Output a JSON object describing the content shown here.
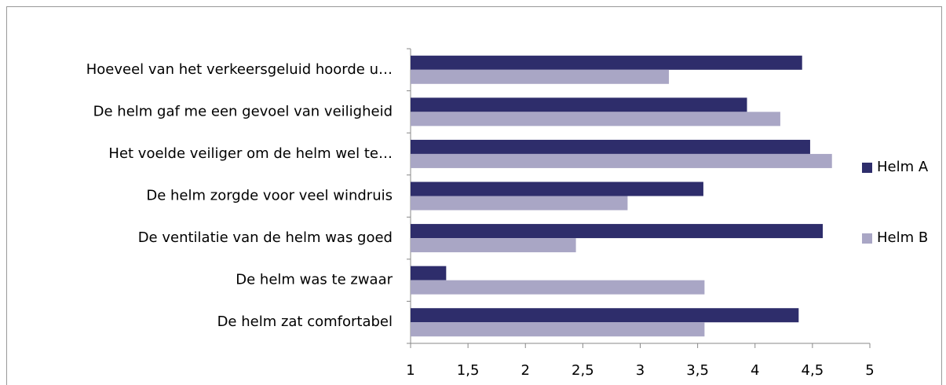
{
  "chart_data": {
    "type": "bar",
    "orientation": "horizontal",
    "categories": [
      "Hoeveel van het verkeersgeluid hoorde u…",
      "De helm gaf me een gevoel van veiligheid",
      "Het voelde veiliger om de helm wel te…",
      "De helm zorgde voor veel windruis",
      "De ventilatie van de helm was goed",
      "De helm was te zwaar",
      "De helm zat comfortabel"
    ],
    "series": [
      {
        "name": "Helm A",
        "color": "#2e2d6b",
        "values": [
          4.41,
          3.93,
          4.48,
          3.55,
          4.59,
          1.31,
          4.38
        ]
      },
      {
        "name": "Helm B",
        "color": "#a9a6c5",
        "values": [
          3.25,
          4.22,
          4.67,
          2.89,
          2.44,
          3.56,
          3.56
        ]
      }
    ],
    "xlim": [
      1,
      5
    ],
    "xticks": [
      1,
      {
        "value": 1.5,
        "label": "1,5"
      },
      2,
      {
        "value": 2.5,
        "label": "2,5"
      },
      3,
      {
        "value": 3.5,
        "label": "3,5"
      },
      4,
      {
        "value": 4.5,
        "label": "4,5"
      },
      5
    ],
    "legend": "right"
  }
}
